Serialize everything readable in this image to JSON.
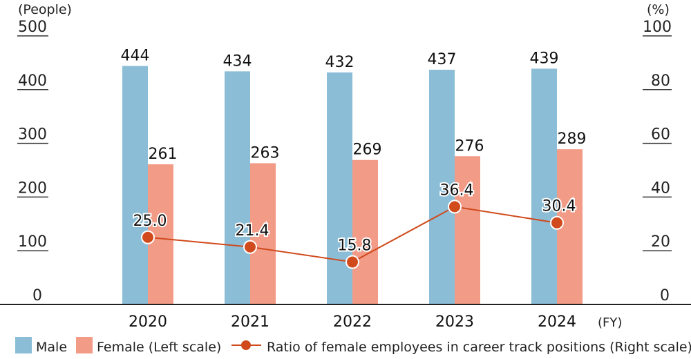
{
  "chart_data": {
    "type": "bar+line",
    "categories": [
      "2020",
      "2021",
      "2022",
      "2023",
      "2024"
    ],
    "x_unit": "(FY)",
    "left_axis": {
      "label": "(People)",
      "range": [
        0,
        500
      ],
      "ticks": [
        0,
        100,
        200,
        300,
        400,
        500
      ]
    },
    "right_axis": {
      "label": "(%)",
      "range": [
        0,
        100
      ],
      "ticks": [
        0,
        20,
        40,
        60,
        80,
        100
      ]
    },
    "series": [
      {
        "name": "Male",
        "type": "bar",
        "axis": "left",
        "color": "#8bbdd6",
        "values": [
          444,
          434,
          432,
          437,
          439
        ]
      },
      {
        "name": "Female (Left scale)",
        "type": "bar",
        "axis": "left",
        "color": "#f29b87",
        "values": [
          261,
          263,
          269,
          276,
          289
        ]
      },
      {
        "name": "Ratio of female employees in career track positions (Right scale)",
        "type": "line",
        "axis": "right",
        "color": "#d04a1c",
        "values": [
          25.0,
          21.4,
          15.8,
          36.4,
          30.4
        ]
      }
    ],
    "legend_position": "bottom"
  }
}
